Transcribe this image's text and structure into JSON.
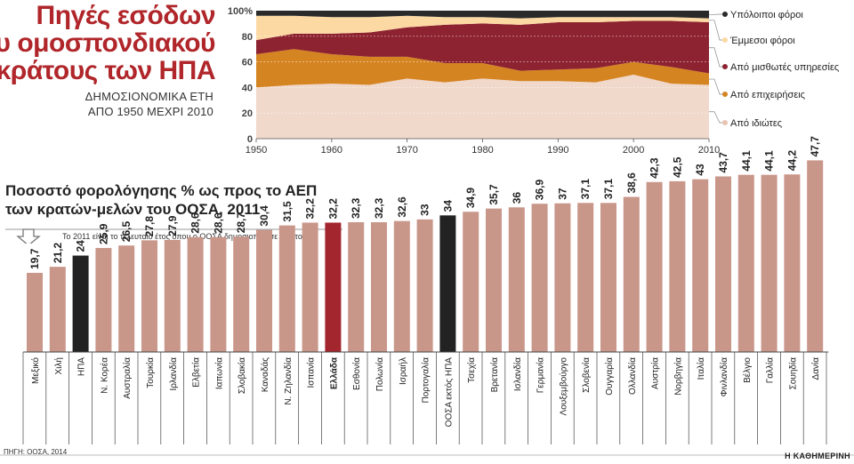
{
  "top_chart": {
    "title_lines": [
      "Πηγές εσόδων",
      "του ομοσπονδιακού",
      "κράτους των ΗΠΑ"
    ],
    "subtitle_lines": [
      "ΔΗΜΟΣΙΟΝΟΜΙΚΑ ΕΤΗ",
      "ΑΠΟ 1950 ΜΕΧΡΙ 2010"
    ]
  },
  "bottom_chart": {
    "title_lines": [
      "Ποσοστό φορολόγησης % ως προς το ΑΕΠ",
      "των κρατών-μελών του ΟΟΣΑ, 2011"
    ],
    "note": "Το 2011 είναι το τελευταίο έτος όπου ο ΟΟΣΑ δημοσιοποίησε τα στοιχεία"
  },
  "source": "ΠΗΓΗ: ΟΟΣΑ, 2014",
  "brand": "Η ΚΑΘΗΜΕΡΙΝΗ",
  "colors": {
    "individuals": "#f0d8cb",
    "corporations": "#d58422",
    "payroll": "#8d2330",
    "excise": "#fcd8a3",
    "other": "#2a2a2a",
    "bar": "#c9968a",
    "bar_greece": "#a3252d",
    "bar_black": "#222222",
    "title_red": "#b0262a"
  },
  "chart_data": [
    {
      "type": "area",
      "stacked": true,
      "x": [
        1950,
        1955,
        1960,
        1965,
        1970,
        1975,
        1980,
        1985,
        1990,
        1995,
        2000,
        2005,
        2010
      ],
      "xticks": [
        "1950",
        "1960",
        "1970",
        "1980",
        "1990",
        "2000",
        "2010"
      ],
      "xtick_values": [
        1950,
        1960,
        1970,
        1980,
        1990,
        2000,
        2010
      ],
      "yticks": [
        "0",
        "20",
        "40",
        "60",
        "80",
        "100%"
      ],
      "ylim": [
        0,
        100
      ],
      "series": [
        {
          "name": "Από ιδιώτες",
          "values": [
            40,
            42,
            43,
            42,
            47,
            44,
            47,
            45,
            45,
            44,
            50,
            43,
            42
          ]
        },
        {
          "name": "Από επιχειρήσεις",
          "values": [
            26,
            28,
            23,
            22,
            17,
            15,
            12,
            8,
            9,
            11,
            10,
            13,
            9
          ]
        },
        {
          "name": "Από μισθωτές υπηρεσίες",
          "values": [
            11,
            12,
            16,
            19,
            23,
            30,
            31,
            36,
            37,
            36,
            32,
            36,
            40
          ]
        },
        {
          "name": "Έμμεσοι φόροι",
          "values": [
            19,
            14,
            13,
            12,
            9,
            6,
            5,
            5,
            4,
            4,
            3,
            3,
            3
          ]
        },
        {
          "name": "Υπόλοιποι φόροι",
          "values": [
            4,
            4,
            5,
            5,
            4,
            5,
            5,
            6,
            5,
            5,
            5,
            5,
            6
          ]
        }
      ]
    },
    {
      "type": "bar",
      "categories": [
        "Μεξικό",
        "Χιλή",
        "ΗΠΑ",
        "Ν. Κορέα",
        "Αυστραλία",
        "Τουρκία",
        "Ιρλανδία",
        "Ελβετία",
        "Ιαπωνία",
        "Σλοβακία",
        "Καναδάς",
        "Ν. Ζηλανδία",
        "Ισπανία",
        "Ελλάδα",
        "Εσθονία",
        "Πολωνία",
        "Ισραήλ",
        "Πορτογαλία",
        "ΟΟΣΑ εκτός ΗΠΑ",
        "Τσεχία",
        "Βρετανία",
        "Ισλανδία",
        "Γερμανία",
        "Λουξεμβούργο",
        "Σλοβενία",
        "Ουγγαρία",
        "Ολλανδία",
        "Αυστρία",
        "Νορβηγία",
        "Ιταλία",
        "Φινλανδία",
        "Βέλγιο",
        "Γαλλία",
        "Σουηδία",
        "Δανία"
      ],
      "value_labels": [
        "19,7",
        "21,2",
        "24",
        "25,9",
        "26,5",
        "27,8",
        "27,9",
        "28,6",
        "28,6",
        "28,7",
        "30,4",
        "31,5",
        "32,2",
        "32,2",
        "32,3",
        "32,3",
        "32,6",
        "33",
        "34",
        "34,9",
        "35,7",
        "36",
        "36,9",
        "37",
        "37,1",
        "37,1",
        "38,6",
        "42,3",
        "42,5",
        "43",
        "43,7",
        "44,1",
        "44,1",
        "44,2",
        "47,7"
      ],
      "values": [
        19.7,
        21.2,
        24,
        25.9,
        26.5,
        27.8,
        27.9,
        28.6,
        28.6,
        28.7,
        30.4,
        31.5,
        32.2,
        32.2,
        32.3,
        32.3,
        32.6,
        33,
        34,
        34.9,
        35.7,
        36,
        36.9,
        37,
        37.1,
        37.1,
        38.6,
        42.3,
        42.5,
        43,
        43.7,
        44.1,
        44.1,
        44.2,
        47.7
      ],
      "highlight_black": [
        "ΗΠΑ",
        "ΟΟΣΑ εκτός ΗΠΑ"
      ],
      "highlight_red": [
        "Ελλάδα"
      ]
    }
  ]
}
